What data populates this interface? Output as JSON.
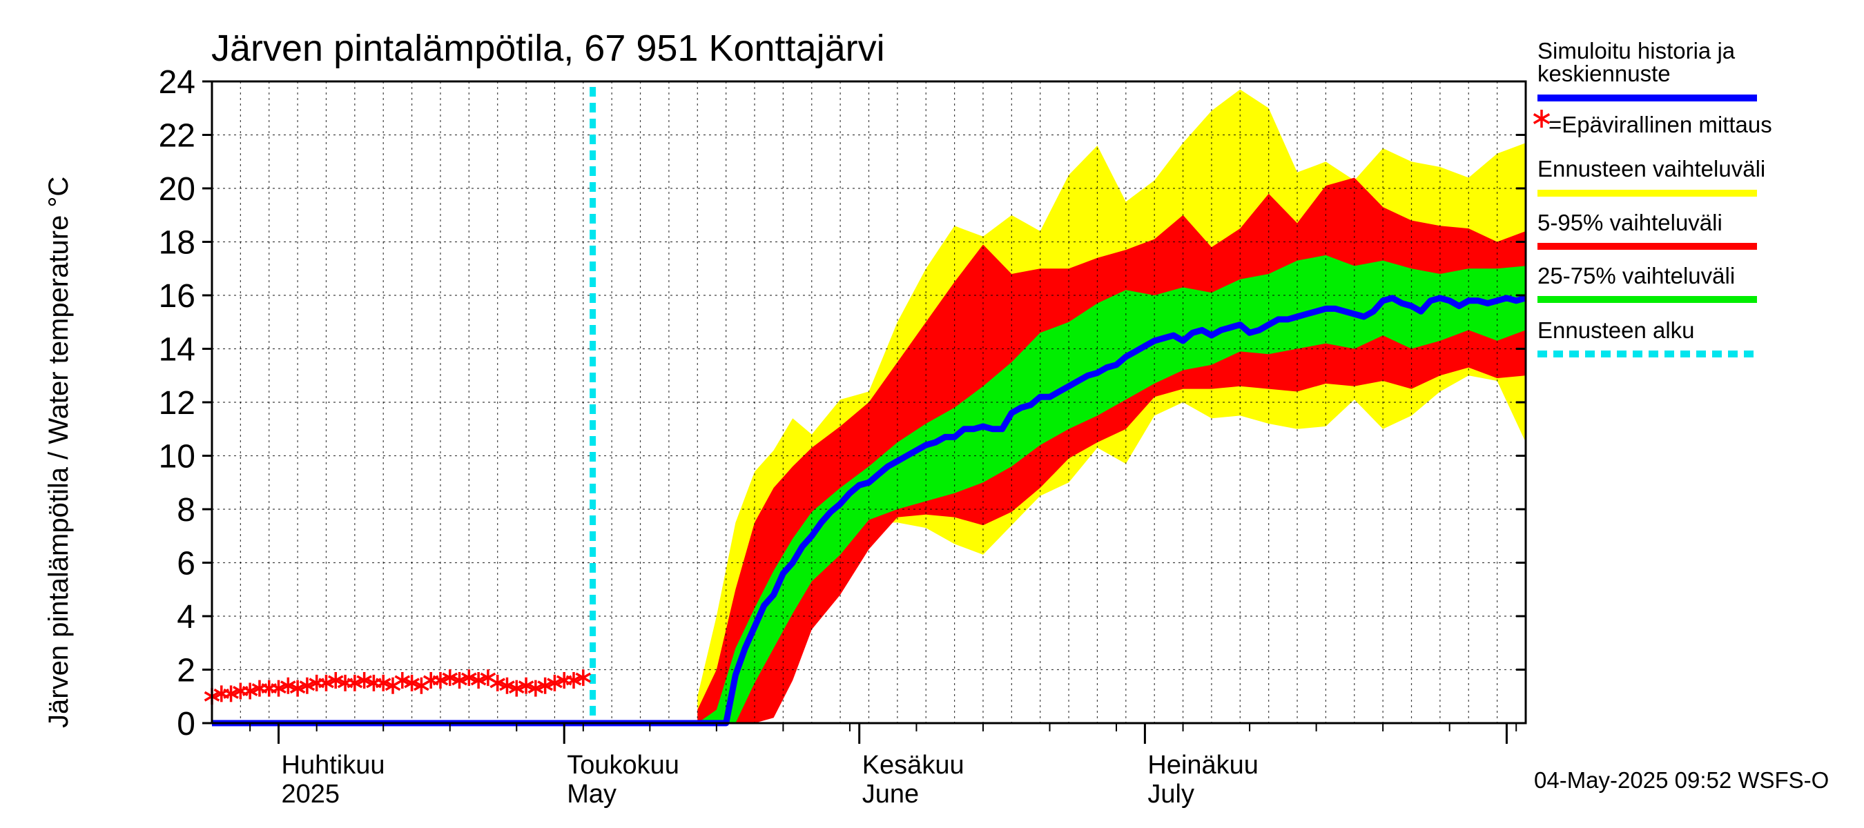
{
  "chart_data": {
    "type": "area",
    "title": "Järven pintalämpötila, 67 951 Konttajärvi",
    "ylabel": "Järven pintalämpötila / Water temperature °C",
    "ylim": [
      0,
      24
    ],
    "yticks": [
      "0",
      "2",
      "4",
      "6",
      "8",
      "10",
      "12",
      "14",
      "16",
      "18",
      "20",
      "22",
      "24"
    ],
    "xlim": [
      "2025-03-25",
      "2025-08-10"
    ],
    "grid": true,
    "legend_position": "right",
    "month_labels": [
      {
        "date": "2025-04-01",
        "fi": "Huhtikuu",
        "en": "2025"
      },
      {
        "date": "2025-05-01",
        "fi": "Toukokuu",
        "en": "May"
      },
      {
        "date": "2025-06-01",
        "fi": "Kesäkuu",
        "en": "June"
      },
      {
        "date": "2025-07-01",
        "fi": "Heinäkuu",
        "en": "July"
      }
    ],
    "timestamp": "04-May-2025 09:52 WSFS-O",
    "forecast_start": "2025-05-04",
    "colors": {
      "median": "#0000ff",
      "range": "#ffff00",
      "p5_95": "#ff0000",
      "p25_75": "#00ee00",
      "forecast_start": "#00e5ee",
      "observations": "#ff0000",
      "grid": "#000000"
    },
    "legend": [
      {
        "label_lines": [
          "Simuloitu historia ja",
          "keskiennuste"
        ],
        "color": "#0000ff",
        "style": "line"
      },
      {
        "label_lines": [
          "=Epävirallinen mittaus"
        ],
        "color": "#ff0000",
        "style": "star"
      },
      {
        "label_lines": [
          "Ennusteen vaihteluväli"
        ],
        "color": "#ffff00",
        "style": "line"
      },
      {
        "label_lines": [
          "5-95% vaihteluväli"
        ],
        "color": "#ff0000",
        "style": "line"
      },
      {
        "label_lines": [
          "25-75% vaihteluväli"
        ],
        "color": "#00ee00",
        "style": "line"
      },
      {
        "label_lines": [
          "Ennusteen alku"
        ],
        "color": "#00e5ee",
        "style": "dashed"
      }
    ],
    "observations": {
      "name": "Epävirallinen mittaus",
      "x": [
        "2025-03-25",
        "2025-03-26",
        "2025-03-27",
        "2025-03-28",
        "2025-03-29",
        "2025-03-30",
        "2025-03-31",
        "2025-04-01",
        "2025-04-02",
        "2025-04-03",
        "2025-04-04",
        "2025-04-05",
        "2025-04-06",
        "2025-04-07",
        "2025-04-08",
        "2025-04-09",
        "2025-04-10",
        "2025-04-11",
        "2025-04-12",
        "2025-04-13",
        "2025-04-14",
        "2025-04-15",
        "2025-04-16",
        "2025-04-17",
        "2025-04-18",
        "2025-04-19",
        "2025-04-20",
        "2025-04-21",
        "2025-04-22",
        "2025-04-23",
        "2025-04-24",
        "2025-04-25",
        "2025-04-26",
        "2025-04-27",
        "2025-04-28",
        "2025-04-29",
        "2025-04-30",
        "2025-05-01",
        "2025-05-02",
        "2025-05-03"
      ],
      "y": [
        1.0,
        1.1,
        1.1,
        1.2,
        1.2,
        1.3,
        1.3,
        1.3,
        1.4,
        1.3,
        1.4,
        1.5,
        1.5,
        1.6,
        1.5,
        1.5,
        1.6,
        1.5,
        1.5,
        1.4,
        1.6,
        1.5,
        1.4,
        1.6,
        1.6,
        1.7,
        1.6,
        1.7,
        1.6,
        1.7,
        1.5,
        1.4,
        1.3,
        1.4,
        1.3,
        1.4,
        1.5,
        1.6,
        1.6,
        1.7
      ]
    },
    "series": [
      {
        "name": "Simuloitu historia ja keskiennuste",
        "x": [
          "2025-03-25",
          "2025-05-04",
          "2025-05-18",
          "2025-05-19",
          "2025-05-20",
          "2025-05-21",
          "2025-05-22",
          "2025-05-23",
          "2025-05-24",
          "2025-05-25",
          "2025-05-26",
          "2025-05-27",
          "2025-05-28",
          "2025-05-29",
          "2025-05-30",
          "2025-05-31",
          "2025-06-01",
          "2025-06-02",
          "2025-06-03",
          "2025-06-04",
          "2025-06-05",
          "2025-06-06",
          "2025-06-07",
          "2025-06-08",
          "2025-06-09",
          "2025-06-10",
          "2025-06-11",
          "2025-06-12",
          "2025-06-13",
          "2025-06-14",
          "2025-06-15",
          "2025-06-16",
          "2025-06-17",
          "2025-06-18",
          "2025-06-19",
          "2025-06-20",
          "2025-06-21",
          "2025-06-22",
          "2025-06-23",
          "2025-06-24",
          "2025-06-25",
          "2025-06-26",
          "2025-06-27",
          "2025-06-28",
          "2025-06-29",
          "2025-06-30",
          "2025-07-01",
          "2025-07-02",
          "2025-07-03",
          "2025-07-04",
          "2025-07-05",
          "2025-07-06",
          "2025-07-07",
          "2025-07-08",
          "2025-07-09",
          "2025-07-10",
          "2025-07-11",
          "2025-07-12",
          "2025-07-13",
          "2025-07-14",
          "2025-07-15",
          "2025-07-16",
          "2025-07-17",
          "2025-07-18",
          "2025-07-19",
          "2025-07-20",
          "2025-07-21",
          "2025-07-22",
          "2025-07-23",
          "2025-07-24",
          "2025-07-25",
          "2025-07-26",
          "2025-07-27",
          "2025-07-28",
          "2025-07-29",
          "2025-07-30",
          "2025-07-31",
          "2025-08-01",
          "2025-08-02",
          "2025-08-03",
          "2025-08-04",
          "2025-08-05",
          "2025-08-06",
          "2025-08-07",
          "2025-08-08",
          "2025-08-09",
          "2025-08-10"
        ],
        "y": [
          0,
          0,
          0,
          1.8,
          2.8,
          3.6,
          4.4,
          4.8,
          5.6,
          6.0,
          6.6,
          7.0,
          7.5,
          7.9,
          8.2,
          8.6,
          8.9,
          9.0,
          9.3,
          9.6,
          9.8,
          10.0,
          10.2,
          10.4,
          10.5,
          10.7,
          10.7,
          11.0,
          11.0,
          11.1,
          11.0,
          11.0,
          11.6,
          11.8,
          11.9,
          12.2,
          12.2,
          12.4,
          12.6,
          12.8,
          13.0,
          13.1,
          13.3,
          13.4,
          13.7,
          13.9,
          14.1,
          14.3,
          14.4,
          14.5,
          14.3,
          14.6,
          14.7,
          14.5,
          14.7,
          14.8,
          14.9,
          14.6,
          14.7,
          14.9,
          15.1,
          15.1,
          15.2,
          15.3,
          15.4,
          15.5,
          15.5,
          15.4,
          15.3,
          15.2,
          15.4,
          15.8,
          15.9,
          15.7,
          15.6,
          15.4,
          15.8,
          15.9,
          15.8,
          15.6,
          15.8,
          15.8,
          15.7,
          15.8,
          15.9,
          15.8,
          15.9
        ]
      },
      {
        "name": "Ennusteen vaihteluväli",
        "x": [
          "2025-05-15",
          "2025-05-17",
          "2025-05-19",
          "2025-05-21",
          "2025-05-23",
          "2025-05-25",
          "2025-05-27",
          "2025-05-30",
          "2025-06-02",
          "2025-06-05",
          "2025-06-08",
          "2025-06-11",
          "2025-06-14",
          "2025-06-17",
          "2025-06-20",
          "2025-06-23",
          "2025-06-26",
          "2025-06-29",
          "2025-07-02",
          "2025-07-05",
          "2025-07-08",
          "2025-07-11",
          "2025-07-14",
          "2025-07-17",
          "2025-07-20",
          "2025-07-23",
          "2025-07-26",
          "2025-07-29",
          "2025-08-01",
          "2025-08-04",
          "2025-08-07",
          "2025-08-10"
        ],
        "upper": [
          1.0,
          4.0,
          7.5,
          9.4,
          10.2,
          11.4,
          10.8,
          12.1,
          12.4,
          15.0,
          17.0,
          18.6,
          18.2,
          19.0,
          18.4,
          20.5,
          21.6,
          19.5,
          20.3,
          21.7,
          22.9,
          23.7,
          23.0,
          20.6,
          21.0,
          20.3,
          21.5,
          21.0,
          20.8,
          20.4,
          21.3,
          21.7
        ],
        "lower": [
          0,
          0,
          0,
          0.3,
          2.2,
          3.5,
          4.5,
          5.8,
          7.5,
          7.5,
          7.3,
          6.7,
          6.3,
          7.4,
          8.5,
          9.0,
          10.3,
          9.7,
          11.5,
          12.0,
          11.4,
          11.5,
          11.2,
          11.0,
          11.1,
          12.1,
          11.0,
          11.5,
          12.4,
          13.0,
          12.8,
          10.5
        ]
      },
      {
        "name": "5-95% vaihteluväli",
        "x": [
          "2025-05-15",
          "2025-05-17",
          "2025-05-19",
          "2025-05-21",
          "2025-05-23",
          "2025-05-25",
          "2025-05-27",
          "2025-05-30",
          "2025-06-02",
          "2025-06-05",
          "2025-06-08",
          "2025-06-11",
          "2025-06-14",
          "2025-06-17",
          "2025-06-20",
          "2025-06-23",
          "2025-06-26",
          "2025-06-29",
          "2025-07-02",
          "2025-07-05",
          "2025-07-08",
          "2025-07-11",
          "2025-07-14",
          "2025-07-17",
          "2025-07-20",
          "2025-07-23",
          "2025-07-26",
          "2025-07-29",
          "2025-08-01",
          "2025-08-04",
          "2025-08-07",
          "2025-08-10"
        ],
        "upper": [
          0.5,
          2.0,
          5.0,
          7.5,
          8.8,
          9.6,
          10.3,
          11.1,
          12.0,
          13.5,
          15.0,
          16.5,
          17.9,
          16.8,
          17.0,
          17.0,
          17.4,
          17.7,
          18.1,
          19.0,
          17.8,
          18.5,
          19.8,
          18.7,
          20.1,
          20.4,
          19.3,
          18.8,
          18.6,
          18.5,
          18.0,
          18.4
        ],
        "lower": [
          0,
          0,
          0,
          0,
          0.2,
          1.6,
          3.5,
          4.8,
          6.5,
          7.7,
          7.8,
          7.7,
          7.4,
          7.9,
          8.8,
          9.9,
          10.5,
          11.0,
          12.2,
          12.5,
          12.5,
          12.6,
          12.5,
          12.4,
          12.7,
          12.6,
          12.8,
          12.5,
          13.0,
          13.3,
          12.9,
          13.0
        ]
      },
      {
        "name": "25-75% vaihteluväli",
        "x": [
          "2025-05-15",
          "2025-05-17",
          "2025-05-19",
          "2025-05-21",
          "2025-05-23",
          "2025-05-25",
          "2025-05-27",
          "2025-05-30",
          "2025-06-02",
          "2025-06-05",
          "2025-06-08",
          "2025-06-11",
          "2025-06-14",
          "2025-06-17",
          "2025-06-20",
          "2025-06-23",
          "2025-06-26",
          "2025-06-29",
          "2025-07-02",
          "2025-07-05",
          "2025-07-08",
          "2025-07-11",
          "2025-07-14",
          "2025-07-17",
          "2025-07-20",
          "2025-07-23",
          "2025-07-26",
          "2025-07-29",
          "2025-08-01",
          "2025-08-04",
          "2025-08-07",
          "2025-08-10"
        ],
        "upper": [
          0,
          0.5,
          2.8,
          4.3,
          5.7,
          6.9,
          7.9,
          8.8,
          9.6,
          10.5,
          11.2,
          11.8,
          12.6,
          13.5,
          14.6,
          15.0,
          15.7,
          16.2,
          16.0,
          16.3,
          16.1,
          16.6,
          16.8,
          17.3,
          17.5,
          17.1,
          17.3,
          17.0,
          16.8,
          17.0,
          17.0,
          17.1
        ],
        "lower": [
          0,
          0,
          0,
          1.5,
          2.8,
          4.1,
          5.3,
          6.3,
          7.6,
          8.0,
          8.3,
          8.6,
          9.0,
          9.6,
          10.4,
          11.0,
          11.5,
          12.1,
          12.7,
          13.2,
          13.4,
          13.9,
          13.8,
          14.0,
          14.2,
          14.0,
          14.5,
          14.0,
          14.3,
          14.7,
          14.3,
          14.7
        ]
      }
    ]
  }
}
